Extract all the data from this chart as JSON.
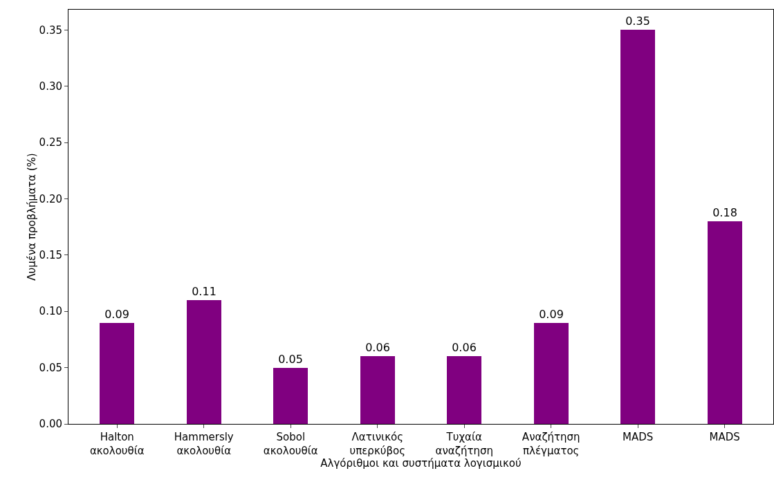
{
  "chart_data": {
    "type": "bar",
    "xlabel": "Αλγόριθμοι και συστήματα λογισμικού",
    "ylabel": "Λυμένα προβλήματα (%)",
    "categories": [
      "Halton\nακολουθία",
      "Hammersly\nακολουθία",
      "Sobol\nακολουθία",
      "Λατινικός\nυπερκύβος",
      "Τυχαία\nαναζήτηση",
      "Αναζήτηση\nπλέγματος",
      "MADS",
      "MADS"
    ],
    "values": [
      0.09,
      0.11,
      0.05,
      0.06,
      0.06,
      0.09,
      0.35,
      0.18
    ],
    "color": "#800080",
    "data_labels": true,
    "ylim": [
      0,
      0.368
    ],
    "yticks": [
      {
        "value": 0,
        "label": "0.00"
      },
      {
        "value": 0.05,
        "label": "0.05"
      },
      {
        "value": 0.1,
        "label": "0.10"
      },
      {
        "value": 0.15,
        "label": "0.15"
      },
      {
        "value": 0.2,
        "label": "0.20"
      },
      {
        "value": 0.25,
        "label": "0.25"
      },
      {
        "value": 0.3,
        "label": "0.30"
      },
      {
        "value": 0.35,
        "label": "0.35"
      }
    ],
    "grid": false,
    "legend": false
  }
}
